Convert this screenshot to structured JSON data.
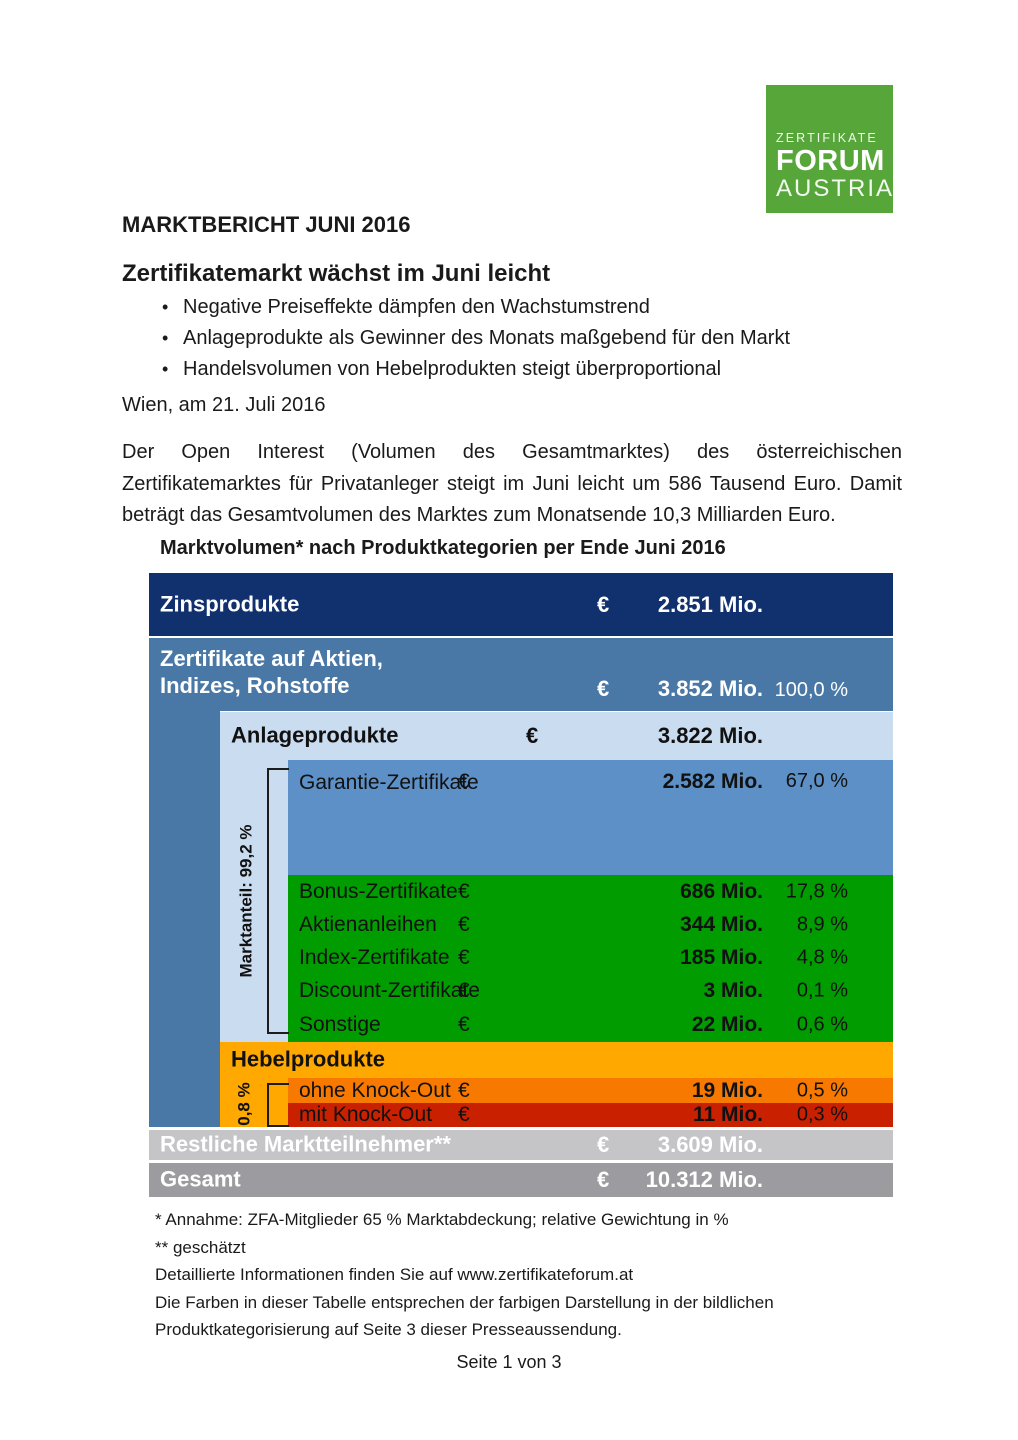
{
  "logo": {
    "line1": "ZERTIFIKATE",
    "line2": "FORUM",
    "line3": "AUSTRIA",
    "bg": "#57a639"
  },
  "title": "MARKTBERICHT JUNI 2016",
  "heading": "Zertifikatemarkt wächst im Juni leicht",
  "bullets": [
    "Negative Preiseffekte dämpfen den Wachstumstrend",
    "Anlageprodukte als Gewinner des Monats maßgebend für den Markt",
    "Handelsvolumen von Hebelprodukten steigt überproportional"
  ],
  "dateline": "Wien, am 21. Juli 2016",
  "paragraph": "Der Open Interest (Volumen des Gesamtmarktes) des österreichischen Zertifikatemarktes für Privatanleger steigt im Juni leicht um 586 Tausend Euro. Damit beträgt das Gesamtvolumen des Marktes zum Monatsende 10,3 Milliarden Euro.",
  "table": {
    "title": "Marktvolumen* nach Produktkategorien per Ende Juni 2016",
    "currency": "€",
    "marktanteil_label": "Marktanteil: 99,2 %",
    "hebel_label": "0,8 %",
    "colors": {
      "navy": "#10306e",
      "steel": "#4a78a6",
      "lightblue": "#cadcef",
      "medblue": "#5c90c6",
      "green": "#009c00",
      "amber": "#ffa800",
      "orange": "#f87900",
      "red": "#c92100",
      "lightgray": "#c5c5c8",
      "midgray": "#9c9ca0"
    },
    "rows": [
      {
        "id": "zinsprodukte",
        "label": "Zinsprodukte",
        "amount": "2.851 Mio.",
        "percent": null,
        "bg": "#10306e",
        "fg": "#ffffff"
      },
      {
        "id": "zertifikate-aktien",
        "label": "Zertifikate auf Aktien,",
        "label2": "Indizes, Rohstoffe",
        "amount": "3.852 Mio.",
        "percent": "100,0 %",
        "bg": "#4a78a6",
        "fg": "#ffffff"
      },
      {
        "id": "anlageprodukte",
        "label": "Anlageprodukte",
        "amount": "3.822 Mio.",
        "percent": null,
        "bg": "#cadcef",
        "fg": "#111111"
      },
      {
        "id": "garantie",
        "label": "Garantie-Zertifikate",
        "amount": "2.582 Mio.",
        "percent": "67,0 %",
        "bg": "#5c90c6",
        "fg": "#111111"
      },
      {
        "id": "bonus",
        "label": "Bonus-Zertifikate",
        "amount": "686 Mio.",
        "percent": "17,8 %",
        "bg": "#009c00",
        "fg": "#111111"
      },
      {
        "id": "aktienanleihen",
        "label": "Aktienanleihen",
        "amount": "344 Mio.",
        "percent": "8,9 %",
        "bg": "#009c00",
        "fg": "#111111"
      },
      {
        "id": "index-zertifikate",
        "label": "Index-Zertifikate",
        "amount": "185 Mio.",
        "percent": "4,8 %",
        "bg": "#009c00",
        "fg": "#111111"
      },
      {
        "id": "discount-zertifikate",
        "label": "Discount-Zertifikate",
        "amount": "3 Mio.",
        "percent": "0,1 %",
        "bg": "#009c00",
        "fg": "#111111"
      },
      {
        "id": "sonstige",
        "label": "Sonstige",
        "amount": "22 Mio.",
        "percent": "0,6 %",
        "bg": "#009c00",
        "fg": "#111111"
      },
      {
        "id": "hebelprodukte",
        "label": "Hebelprodukte",
        "amount": null,
        "percent": null,
        "bg": "#ffa800",
        "fg": "#111111"
      },
      {
        "id": "ohne-knockout",
        "label": "ohne Knock-Out",
        "amount": "19 Mio.",
        "percent": "0,5 %",
        "bg": "#f87900",
        "fg": "#111111"
      },
      {
        "id": "mit-knockout",
        "label": "mit Knock-Out",
        "amount": "11 Mio.",
        "percent": "0,3 %",
        "bg": "#c92100",
        "fg": "#111111"
      },
      {
        "id": "restliche",
        "label": "Restliche Marktteilnehmer**",
        "amount": "3.609 Mio.",
        "percent": null,
        "bg": "#c5c5c8",
        "fg": "#ffffff"
      },
      {
        "id": "gesamt",
        "label": "Gesamt",
        "amount": "10.312 Mio.",
        "percent": null,
        "bg": "#9c9ca0",
        "fg": "#ffffff"
      }
    ]
  },
  "notes": [
    "* Annahme: ZFA-Mitglieder 65 % Marktabdeckung; relative Gewichtung in %",
    "** geschätzt",
    "Detaillierte Informationen finden Sie auf www.zertifikateforum.at",
    "Die Farben in dieser Tabelle entsprechen der farbigen Darstellung in der bildlichen",
    "Produktkategorisierung auf Seite 3 dieser Presseaussendung."
  ],
  "footer": "Seite 1 von 3"
}
